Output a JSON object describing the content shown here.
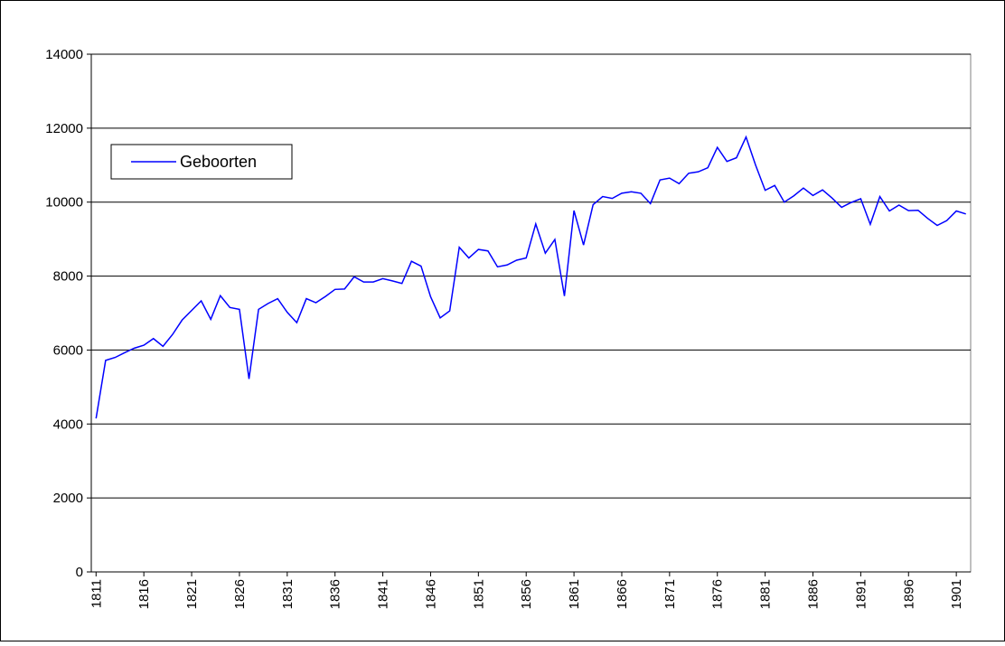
{
  "chart_data": {
    "type": "line",
    "x": [
      1811,
      1812,
      1813,
      1814,
      1815,
      1816,
      1817,
      1818,
      1819,
      1820,
      1821,
      1822,
      1823,
      1824,
      1825,
      1826,
      1827,
      1828,
      1829,
      1830,
      1831,
      1832,
      1833,
      1834,
      1835,
      1836,
      1837,
      1838,
      1839,
      1840,
      1841,
      1842,
      1843,
      1844,
      1845,
      1846,
      1847,
      1848,
      1849,
      1850,
      1851,
      1852,
      1853,
      1854,
      1855,
      1856,
      1857,
      1858,
      1859,
      1860,
      1861,
      1862,
      1863,
      1864,
      1865,
      1866,
      1867,
      1868,
      1869,
      1870,
      1871,
      1872,
      1873,
      1874,
      1875,
      1876,
      1877,
      1878,
      1879,
      1880,
      1881,
      1882,
      1883,
      1884,
      1885,
      1886,
      1887,
      1888,
      1889,
      1890,
      1891,
      1892,
      1893,
      1894,
      1895,
      1896,
      1897,
      1898,
      1899,
      1900,
      1901,
      1902
    ],
    "series": [
      {
        "name": "Geboorten",
        "color": "#0000ff",
        "values": [
          4150,
          5720,
          5800,
          5930,
          6050,
          6130,
          6310,
          6100,
          6420,
          6810,
          7070,
          7330,
          6830,
          7470,
          7150,
          7100,
          5220,
          7100,
          7260,
          7390,
          7020,
          6740,
          7390,
          7280,
          7450,
          7640,
          7650,
          7980,
          7840,
          7840,
          7930,
          7870,
          7800,
          8400,
          8270,
          7440,
          6870,
          7060,
          8780,
          8490,
          8720,
          8680,
          8250,
          8300,
          8430,
          8490,
          9410,
          8620,
          8990,
          7460,
          9770,
          8840,
          9930,
          10150,
          10100,
          10240,
          10280,
          10240,
          9960,
          10600,
          10650,
          10500,
          10780,
          10820,
          10930,
          11480,
          11100,
          11200,
          11760,
          11000,
          10320,
          10450,
          10000,
          10170,
          10380,
          10180,
          10330,
          10110,
          9860,
          9990,
          10090,
          9400,
          10150,
          9760,
          9920,
          9770,
          9780,
          9560,
          9370,
          9500,
          9760,
          9680
        ]
      }
    ],
    "xlim": [
      1810.5,
      1902.5
    ],
    "xticks": [
      1811,
      1816,
      1821,
      1826,
      1831,
      1836,
      1841,
      1846,
      1851,
      1856,
      1861,
      1866,
      1871,
      1876,
      1881,
      1886,
      1891,
      1896,
      1901
    ],
    "ylim": [
      0,
      14000
    ],
    "yticks": [
      0,
      2000,
      4000,
      6000,
      8000,
      10000,
      12000,
      14000
    ],
    "grid": true,
    "legend": "upper left"
  }
}
